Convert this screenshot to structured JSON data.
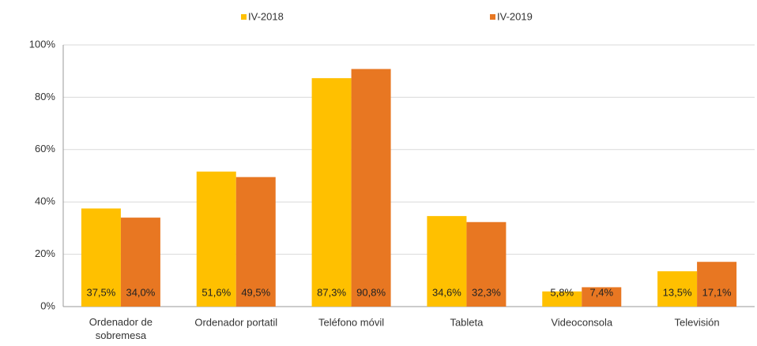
{
  "chart_data": {
    "type": "bar",
    "categories": [
      "Ordenador de sobremesa",
      "Ordenador portatil",
      "Teléfono móvil",
      "Tableta",
      "Videoconsola",
      "Televisión"
    ],
    "series": [
      {
        "name": "IV-2018",
        "color": "#ffc000",
        "values": [
          37.5,
          51.6,
          87.3,
          34.6,
          5.8,
          13.5
        ],
        "value_labels": [
          "37,5%",
          "51,6%",
          "87,3%",
          "34,6%",
          "5,8%",
          "13,5%"
        ]
      },
      {
        "name": "IV-2019",
        "color": "#e87722",
        "values": [
          34.0,
          49.5,
          90.8,
          32.3,
          7.4,
          17.1
        ],
        "value_labels": [
          "34,0%",
          "49,5%",
          "90,8%",
          "32,3%",
          "7,4%",
          "17,1%"
        ]
      }
    ],
    "ylim": [
      0,
      100
    ],
    "yticks": [
      {
        "value": 0,
        "label": "0%"
      },
      {
        "value": 20,
        "label": "20%"
      },
      {
        "value": 40,
        "label": "40%"
      },
      {
        "value": 60,
        "label": "60%"
      },
      {
        "value": 80,
        "label": "80%"
      },
      {
        "value": 100,
        "label": "100%"
      }
    ],
    "grid": true,
    "legend": "top"
  }
}
